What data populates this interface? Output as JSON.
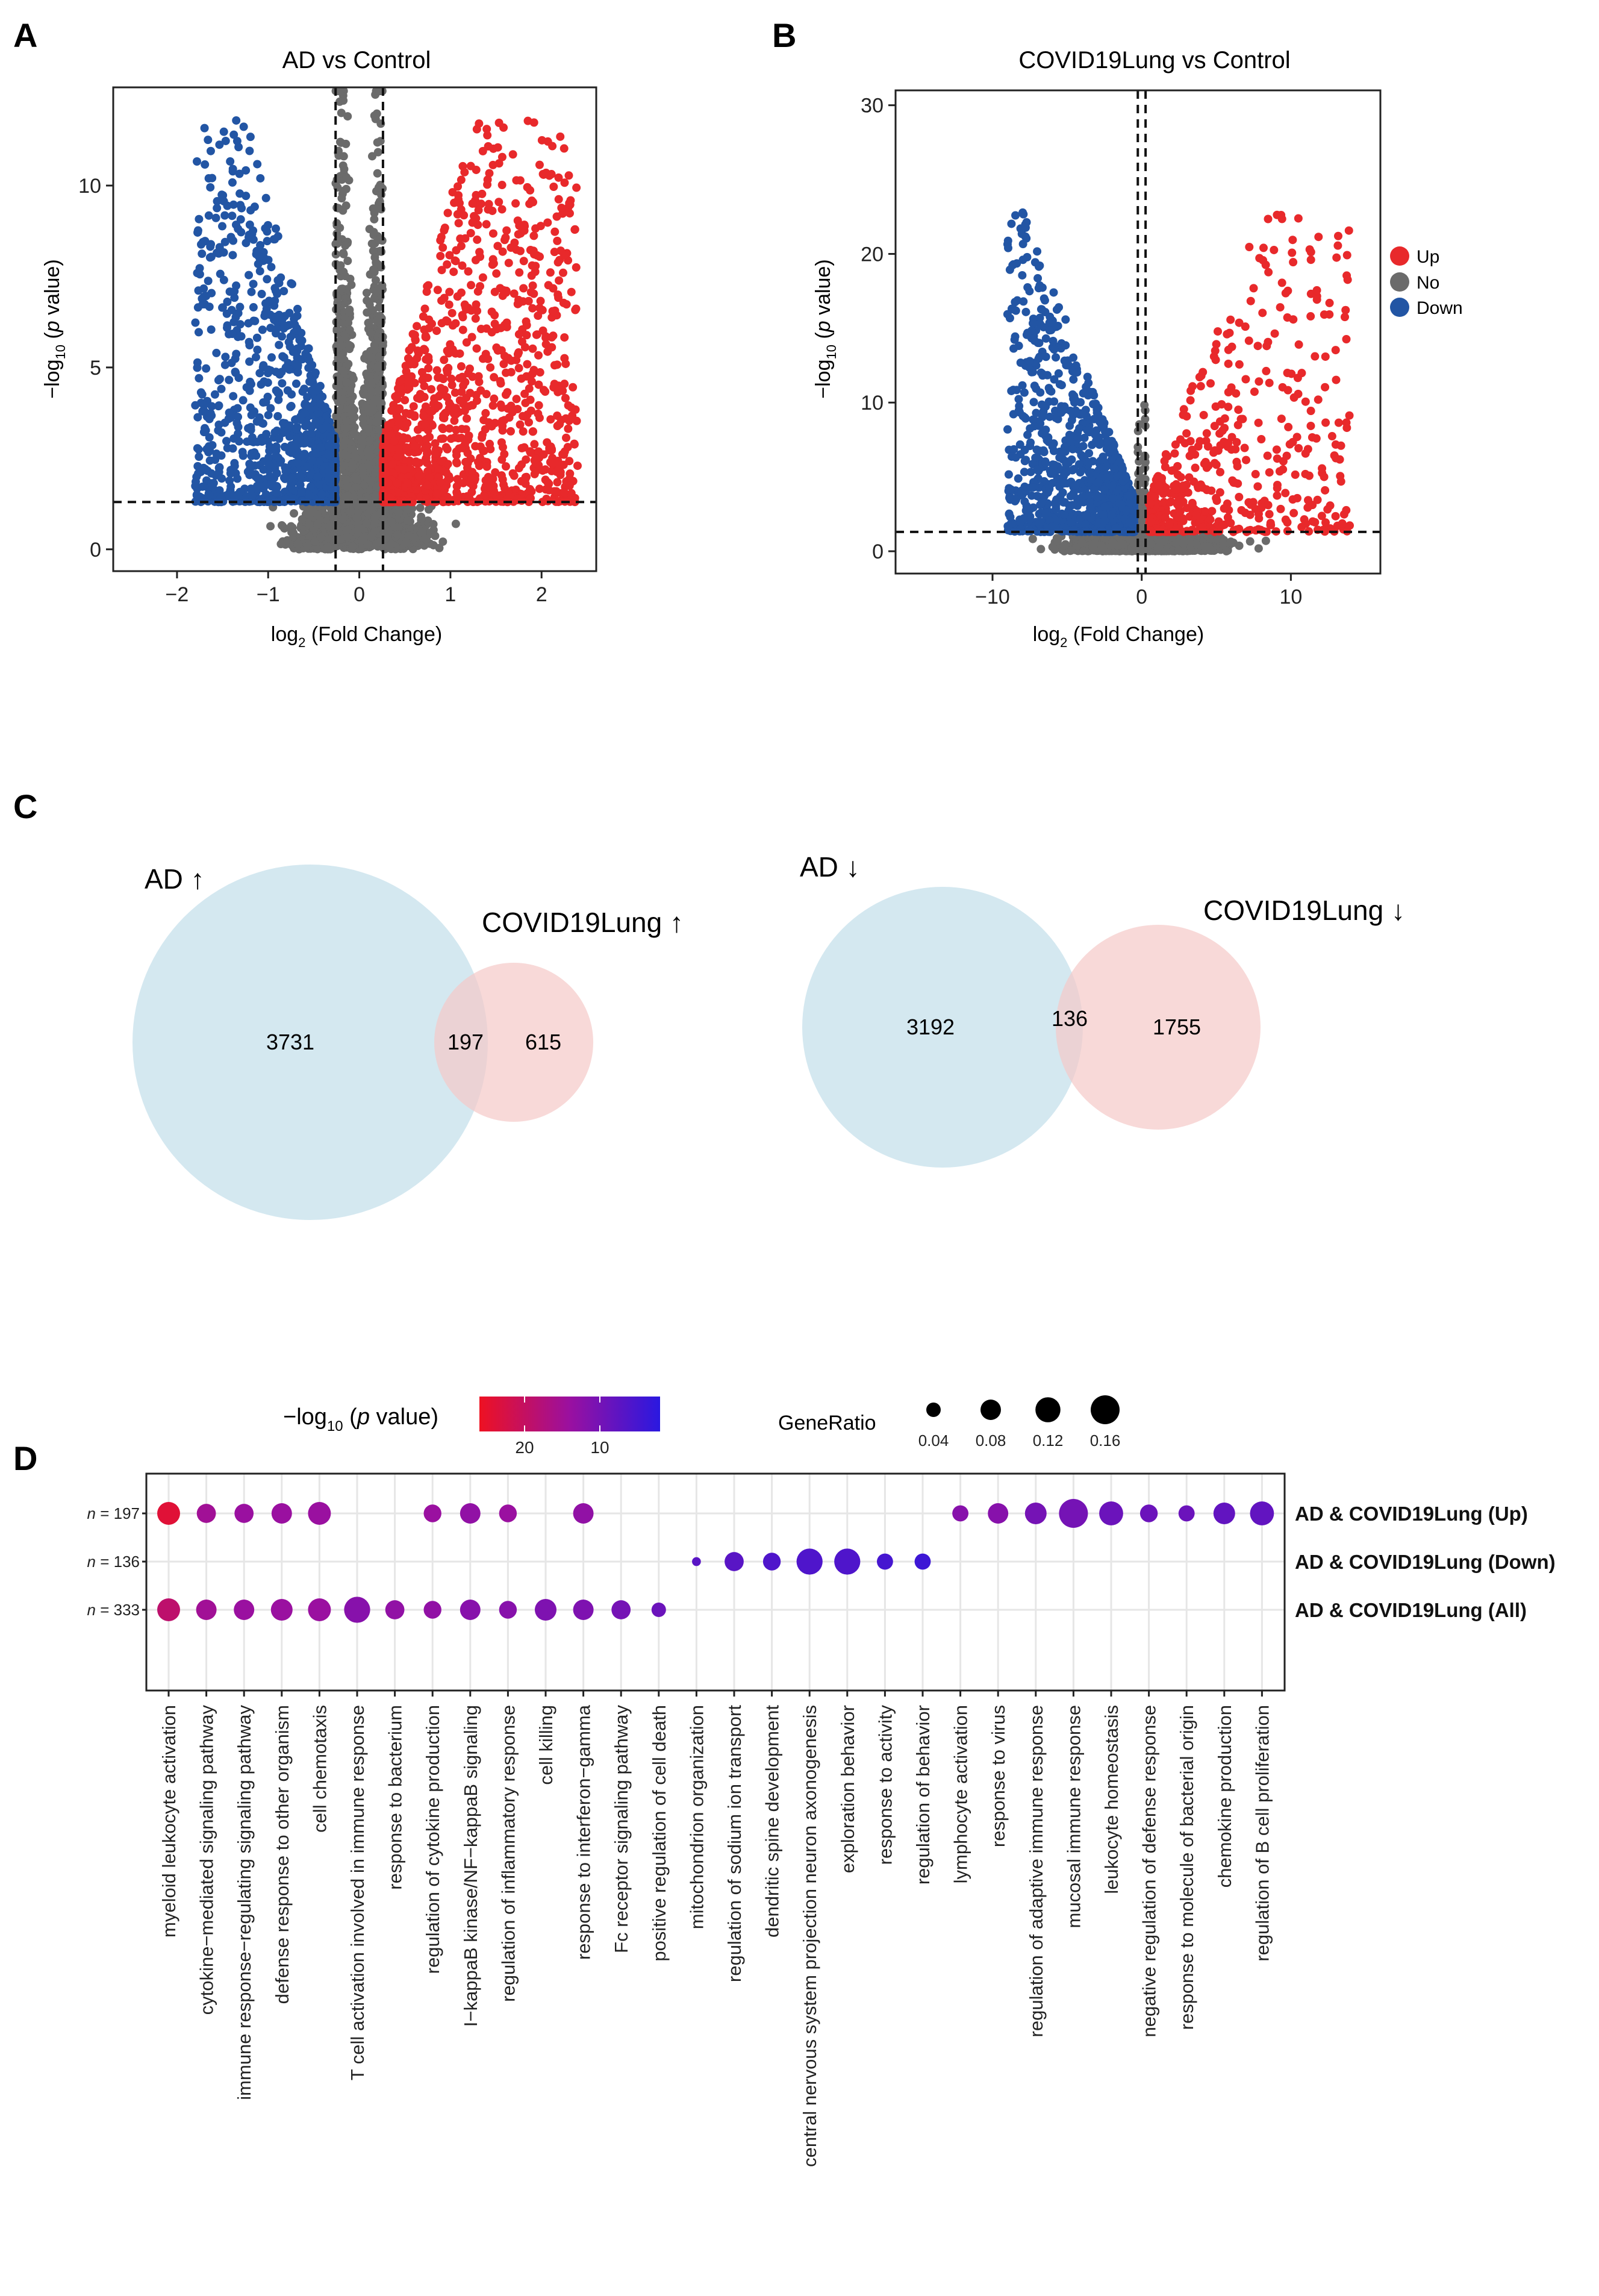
{
  "panel_letters": [
    "A",
    "B",
    "C",
    "D"
  ],
  "colors": {
    "up": "#e8292b",
    "no": "#6b6b6b",
    "down": "#2255a4",
    "venn_ad": "#cfe6ee",
    "venn_covid": "#f5c9c7",
    "grad_high": "#ee1122",
    "grad_mid": "#9a10a0",
    "grad_low": "#2a18e0"
  },
  "chart_data": [
    {
      "type": "scatter",
      "id": "A",
      "title": "AD vs Control",
      "xlabel": {
        "pre": "log",
        "sub": "2",
        "post": " (Fold Change)"
      },
      "ylabel": {
        "pre": "−log",
        "sub": "10",
        "mid": " (",
        "ital": "p",
        "post": " value)"
      },
      "xlim": [
        -2.7,
        2.6
      ],
      "ylim": [
        -0.6,
        12.7
      ],
      "xticks": [
        -2,
        -1,
        0,
        1,
        2
      ],
      "xtick_labels": [
        "−2",
        "−1",
        "0",
        "1",
        "2"
      ],
      "yticks": [
        0,
        5,
        10
      ],
      "ytick_labels": [
        "0",
        "5",
        "10"
      ],
      "fc_cutoff": 0.26,
      "p_line": 1.3,
      "counts": {
        "up": 3928,
        "down": 3328
      },
      "max_minuslog10p": 11.8,
      "xrange_up": [
        0.26,
        2.4
      ],
      "xrange_down": [
        -1.8,
        -0.26
      ]
    },
    {
      "type": "scatter",
      "id": "B",
      "title": "COVID19Lung vs Control",
      "xlabel": {
        "pre": "log",
        "sub": "2",
        "post": " (Fold Change)"
      },
      "ylabel": {
        "pre": "−log",
        "sub": "10",
        "mid": " (",
        "ital": "p",
        "post": " value)"
      },
      "xlim": [
        -16.5,
        16
      ],
      "ylim": [
        -1.5,
        31
      ],
      "xticks": [
        -10,
        0,
        10
      ],
      "xtick_labels": [
        "−10",
        "0",
        "10"
      ],
      "yticks": [
        0,
        10,
        20,
        30
      ],
      "ytick_labels": [
        "0",
        "10",
        "20",
        "30"
      ],
      "fc_cutoff": 0.26,
      "p_line": 1.3,
      "counts": {
        "up": 812,
        "down": 1891
      },
      "max_minuslog10p": 23,
      "xrange_up": [
        0.5,
        14
      ],
      "xrange_down": [
        -9,
        -0.5
      ],
      "legend": {
        "position": "right",
        "items": [
          {
            "label": "Up",
            "color": "#e8292b"
          },
          {
            "label": "No",
            "color": "#6b6b6b"
          },
          {
            "label": "Down",
            "color": "#2255a4"
          }
        ]
      }
    },
    {
      "type": "venn",
      "id": "C-up",
      "labels": {
        "a": "AD ↑",
        "b": "COVID19Lung ↑"
      },
      "values": {
        "a_only": 3731,
        "overlap": 197,
        "b_only": 615
      }
    },
    {
      "type": "venn",
      "id": "C-down",
      "labels": {
        "a": "AD ↓",
        "b": "COVID19Lung ↓"
      },
      "values": {
        "a_only": 3192,
        "overlap": 136,
        "b_only": 1755
      }
    },
    {
      "type": "dot",
      "id": "D",
      "colorbar": {
        "label": {
          "pre": "−log",
          "sub": "10",
          "mid": " (",
          "ital": "p",
          "post": " value)"
        },
        "ticks": [
          20,
          10
        ],
        "tick_labels": [
          "20",
          "10"
        ],
        "range": [
          2,
          26
        ]
      },
      "size_legend": {
        "title": "GeneRatio",
        "values": [
          0.04,
          0.08,
          0.12,
          0.16
        ],
        "labels": [
          "0.04",
          "0.08",
          "0.12",
          "0.16"
        ]
      },
      "rows": [
        {
          "name": "AD & COVID19Lung (Up)",
          "n_label": "= 197"
        },
        {
          "name": "AD & COVID19Lung (Down)",
          "n_label": "= 136"
        },
        {
          "name": "AD & COVID19Lung (All)",
          "n_label": "= 333"
        }
      ],
      "terms": [
        "myeloid leukocyte activation",
        "cytokine−mediated signaling pathway",
        "immune response−regulating signaling pathway",
        "defense response to other organism",
        "cell chemotaxis",
        "T cell activation involved in immune response",
        "response to bacterium",
        "regulation of cytokine production",
        "I−kappaB kinase/NF−kappaB signaling",
        "regulation of inflammatory response",
        "cell killing",
        "response to interferon−gamma",
        "Fc receptor signaling pathway",
        "positive regulation of cell death",
        "mitochondrion organization",
        "regulation of sodium ion transport",
        "dendritic spine development",
        "central nervous system projection neuron axonogenesis",
        "exploration behavior",
        "response to activity",
        "regulation of behavior",
        "lymphocyte activation",
        "response to virus",
        "regulation of adaptive immune response",
        "mucosal immune response",
        "leukocyte homeostasis",
        "negative regulation of defense response",
        "response to molecule of bacterial origin",
        "chemokine production",
        "regulation of B cell proliferation"
      ],
      "points": [
        {
          "row": 0,
          "term": 0,
          "ratio": 0.1,
          "p": 24
        },
        {
          "row": 0,
          "term": 1,
          "ratio": 0.07,
          "p": 15
        },
        {
          "row": 0,
          "term": 2,
          "ratio": 0.07,
          "p": 14
        },
        {
          "row": 0,
          "term": 3,
          "ratio": 0.08,
          "p": 14
        },
        {
          "row": 0,
          "term": 4,
          "ratio": 0.1,
          "p": 14
        },
        {
          "row": 0,
          "term": 7,
          "ratio": 0.06,
          "p": 14
        },
        {
          "row": 0,
          "term": 8,
          "ratio": 0.08,
          "p": 13
        },
        {
          "row": 0,
          "term": 9,
          "ratio": 0.06,
          "p": 14
        },
        {
          "row": 0,
          "term": 11,
          "ratio": 0.08,
          "p": 13
        },
        {
          "row": 0,
          "term": 21,
          "ratio": 0.05,
          "p": 12
        },
        {
          "row": 0,
          "term": 22,
          "ratio": 0.08,
          "p": 12
        },
        {
          "row": 0,
          "term": 23,
          "ratio": 0.09,
          "p": 10
        },
        {
          "row": 0,
          "term": 24,
          "ratio": 0.16,
          "p": 10
        },
        {
          "row": 0,
          "term": 25,
          "ratio": 0.11,
          "p": 9
        },
        {
          "row": 0,
          "term": 26,
          "ratio": 0.06,
          "p": 9
        },
        {
          "row": 0,
          "term": 27,
          "ratio": 0.05,
          "p": 9
        },
        {
          "row": 0,
          "term": 28,
          "ratio": 0.09,
          "p": 8
        },
        {
          "row": 0,
          "term": 29,
          "ratio": 0.11,
          "p": 8
        },
        {
          "row": 1,
          "term": 14,
          "ratio": 0.015,
          "p": 7
        },
        {
          "row": 1,
          "term": 15,
          "ratio": 0.07,
          "p": 7
        },
        {
          "row": 1,
          "term": 16,
          "ratio": 0.06,
          "p": 6
        },
        {
          "row": 1,
          "term": 17,
          "ratio": 0.13,
          "p": 6
        },
        {
          "row": 1,
          "term": 18,
          "ratio": 0.13,
          "p": 6
        },
        {
          "row": 1,
          "term": 19,
          "ratio": 0.05,
          "p": 5
        },
        {
          "row": 1,
          "term": 20,
          "ratio": 0.05,
          "p": 4
        },
        {
          "row": 2,
          "term": 0,
          "ratio": 0.1,
          "p": 19
        },
        {
          "row": 2,
          "term": 1,
          "ratio": 0.08,
          "p": 15
        },
        {
          "row": 2,
          "term": 2,
          "ratio": 0.08,
          "p": 14
        },
        {
          "row": 2,
          "term": 3,
          "ratio": 0.09,
          "p": 14
        },
        {
          "row": 2,
          "term": 4,
          "ratio": 0.1,
          "p": 14
        },
        {
          "row": 2,
          "term": 5,
          "ratio": 0.13,
          "p": 12
        },
        {
          "row": 2,
          "term": 6,
          "ratio": 0.07,
          "p": 13
        },
        {
          "row": 2,
          "term": 7,
          "ratio": 0.06,
          "p": 13
        },
        {
          "row": 2,
          "term": 8,
          "ratio": 0.08,
          "p": 12
        },
        {
          "row": 2,
          "term": 9,
          "ratio": 0.06,
          "p": 12
        },
        {
          "row": 2,
          "term": 10,
          "ratio": 0.09,
          "p": 11
        },
        {
          "row": 2,
          "term": 11,
          "ratio": 0.08,
          "p": 11
        },
        {
          "row": 2,
          "term": 12,
          "ratio": 0.07,
          "p": 10
        },
        {
          "row": 2,
          "term": 13,
          "ratio": 0.04,
          "p": 9
        }
      ]
    }
  ]
}
